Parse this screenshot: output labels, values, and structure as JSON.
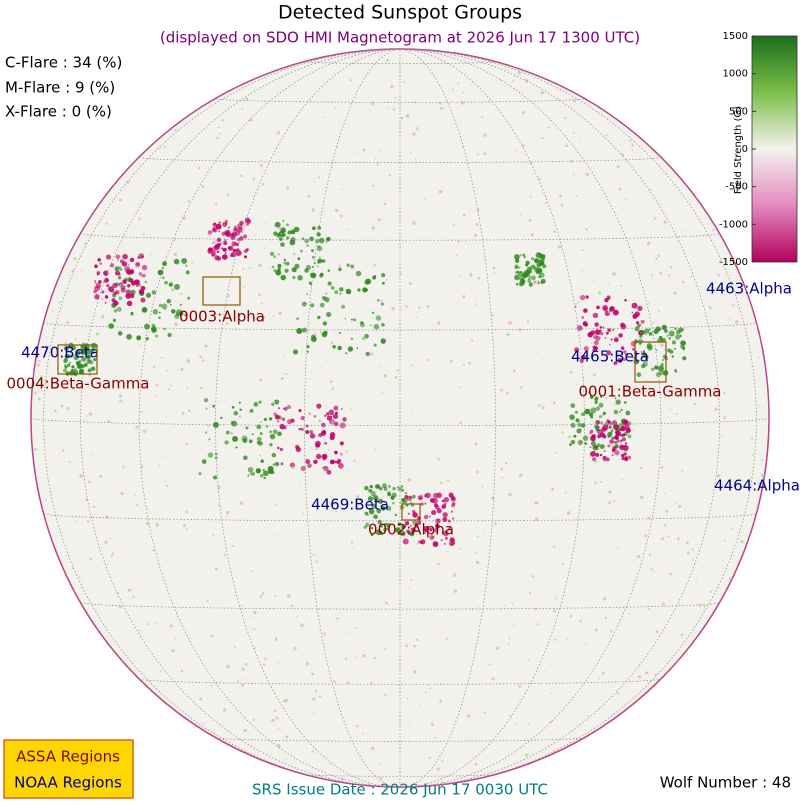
{
  "header": {
    "title": "Detected Sunspot Groups",
    "subtitle": "(displayed on SDO HMI Magnetogram at 2026 Jun 17 1300 UTC)"
  },
  "flares": [
    "C-Flare : 34 (%)",
    "M-Flare :  9 (%)",
    "X-Flare :  0 (%)"
  ],
  "colorbar": {
    "label": "Field Strength (G)",
    "range": [
      -1500,
      1500
    ],
    "ticks": [
      1500,
      1000,
      500,
      0,
      -500,
      -1000,
      -1500
    ]
  },
  "assa_regions": [
    "0003:Alpha",
    "0004:Beta-Gamma",
    "0001:Beta-Gamma",
    "0002:Alpha"
  ],
  "noaa_regions": [
    "4463:Alpha",
    "4470:Beta",
    "4465:Beta",
    "4469:Beta",
    "4464:Alpha"
  ],
  "legend": {
    "assa": "ASSA Regions",
    "noaa": "NOAA Regions"
  },
  "footer": {
    "issue_date": "SRS Issue Date : 2026 Jun 17 0030 UTC",
    "wolf_number": "Wolf Number : 48"
  }
}
